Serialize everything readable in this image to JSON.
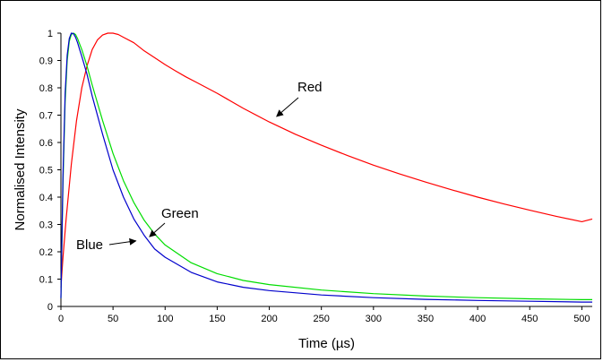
{
  "chart_data": {
    "type": "line",
    "title": "",
    "xlabel": "Time (µs)",
    "ylabel": "Normalised Intensity",
    "xlim": [
      0,
      510
    ],
    "ylim": [
      0,
      1
    ],
    "grid": false,
    "x_ticks": [
      0,
      50,
      100,
      150,
      200,
      250,
      300,
      350,
      400,
      450,
      500
    ],
    "x_tick_labels": [
      "0",
      "50",
      "100",
      "150",
      "200",
      "250",
      "300",
      "350",
      "400",
      "450",
      "500"
    ],
    "y_ticks": [
      0,
      0.1,
      0.2,
      0.3,
      0.4,
      0.5,
      0.6,
      0.7,
      0.8,
      0.9,
      1
    ],
    "y_tick_labels": [
      "0",
      "0.1",
      "0.2",
      "0.3",
      "0.4",
      "0.5",
      "0.6",
      "0.7",
      "0.8",
      "0.9",
      "1"
    ],
    "series": [
      {
        "name": "Red",
        "color": "#ff0000",
        "x": [
          0,
          2,
          5,
          10,
          15,
          20,
          25,
          30,
          35,
          40,
          45,
          50,
          55,
          60,
          70,
          80,
          90,
          100,
          110,
          120,
          130,
          150,
          175,
          200,
          225,
          250,
          275,
          300,
          325,
          350,
          375,
          400,
          425,
          450,
          475,
          500,
          510
        ],
        "y": [
          0.07,
          0.18,
          0.32,
          0.52,
          0.68,
          0.8,
          0.88,
          0.94,
          0.975,
          0.993,
          1.0,
          1.0,
          0.995,
          0.985,
          0.965,
          0.935,
          0.91,
          0.885,
          0.862,
          0.84,
          0.82,
          0.78,
          0.725,
          0.675,
          0.63,
          0.59,
          0.552,
          0.517,
          0.485,
          0.455,
          0.427,
          0.4,
          0.375,
          0.352,
          0.33,
          0.31,
          0.32
        ]
      },
      {
        "name": "Green",
        "color": "#00dd00",
        "x": [
          0,
          2,
          4,
          6,
          8,
          10,
          12,
          14,
          16,
          18,
          20,
          25,
          30,
          40,
          50,
          60,
          70,
          80,
          90,
          100,
          125,
          150,
          175,
          200,
          250,
          300,
          350,
          400,
          450,
          500,
          510
        ],
        "y": [
          0.03,
          0.45,
          0.75,
          0.9,
          0.97,
          0.995,
          1.0,
          0.995,
          0.98,
          0.96,
          0.94,
          0.88,
          0.81,
          0.68,
          0.56,
          0.46,
          0.38,
          0.315,
          0.265,
          0.225,
          0.16,
          0.12,
          0.095,
          0.08,
          0.06,
          0.047,
          0.038,
          0.032,
          0.028,
          0.025,
          0.025
        ]
      },
      {
        "name": "Blue",
        "color": "#0000cc",
        "x": [
          0,
          2,
          4,
          6,
          8,
          10,
          12,
          14,
          16,
          18,
          20,
          25,
          30,
          40,
          50,
          60,
          70,
          80,
          90,
          100,
          125,
          150,
          175,
          200,
          250,
          300,
          350,
          400,
          450,
          500,
          510
        ],
        "y": [
          0.03,
          0.48,
          0.78,
          0.92,
          0.98,
          1.0,
          0.998,
          0.985,
          0.965,
          0.94,
          0.915,
          0.85,
          0.77,
          0.63,
          0.5,
          0.4,
          0.32,
          0.26,
          0.21,
          0.18,
          0.125,
          0.09,
          0.07,
          0.058,
          0.042,
          0.032,
          0.026,
          0.022,
          0.019,
          0.016,
          0.016
        ]
      }
    ],
    "annotations": [
      {
        "text": "Red",
        "target_x": 207,
        "target_y": 0.695
      },
      {
        "text": "Green",
        "target_x": 85,
        "target_y": 0.255
      },
      {
        "text": "Blue",
        "target_x": 72,
        "target_y": 0.24
      }
    ]
  }
}
